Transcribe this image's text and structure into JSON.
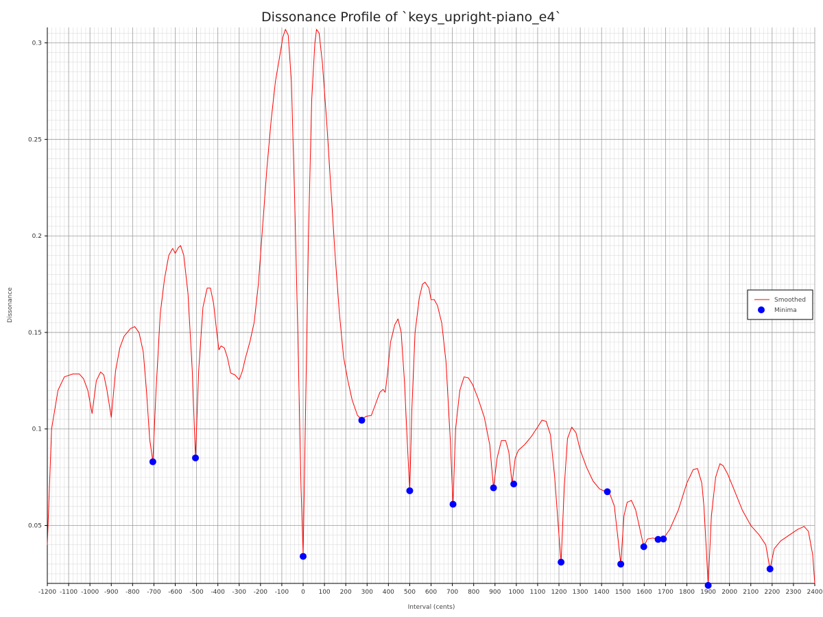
{
  "chart_data": {
    "type": "line",
    "title": "Dissonance Profile of `keys_upright-piano_e4`",
    "xlabel": "Interval (cents)",
    "ylabel": "Dissonance",
    "xlim": [
      -1200,
      2400
    ],
    "ylim": [
      0.02,
      0.308
    ],
    "x_ticks": [
      -1200,
      -1100,
      -1000,
      -900,
      -800,
      -700,
      -600,
      -500,
      -400,
      -300,
      -200,
      -100,
      0,
      100,
      200,
      300,
      400,
      500,
      600,
      700,
      800,
      900,
      1000,
      1100,
      1200,
      1300,
      1400,
      1500,
      1600,
      1700,
      1800,
      1900,
      2000,
      2100,
      2200,
      2300,
      2400
    ],
    "y_ticks": [
      0.05,
      0.1,
      0.15,
      0.2,
      0.25,
      0.3
    ],
    "grid": true,
    "legend_position": "right",
    "series": [
      {
        "name": "Smoothed",
        "kind": "line",
        "color": "#ff0000",
        "points": [
          [
            -1200,
            0.04
          ],
          [
            -1180,
            0.1
          ],
          [
            -1150,
            0.12
          ],
          [
            -1120,
            0.127
          ],
          [
            -1080,
            0.1285
          ],
          [
            -1050,
            0.1285
          ],
          [
            -1030,
            0.126
          ],
          [
            -1010,
            0.12
          ],
          [
            -990,
            0.108
          ],
          [
            -970,
            0.125
          ],
          [
            -950,
            0.1295
          ],
          [
            -935,
            0.128
          ],
          [
            -920,
            0.12
          ],
          [
            -900,
            0.106
          ],
          [
            -880,
            0.13
          ],
          [
            -860,
            0.142
          ],
          [
            -840,
            0.148
          ],
          [
            -810,
            0.152
          ],
          [
            -790,
            0.153
          ],
          [
            -770,
            0.15
          ],
          [
            -750,
            0.14
          ],
          [
            -735,
            0.12
          ],
          [
            -720,
            0.095
          ],
          [
            -705,
            0.083
          ],
          [
            -690,
            0.12
          ],
          [
            -670,
            0.16
          ],
          [
            -650,
            0.178
          ],
          [
            -630,
            0.19
          ],
          [
            -612,
            0.1935
          ],
          [
            -600,
            0.191
          ],
          [
            -585,
            0.194
          ],
          [
            -575,
            0.195
          ],
          [
            -560,
            0.19
          ],
          [
            -540,
            0.17
          ],
          [
            -520,
            0.13
          ],
          [
            -505,
            0.085
          ],
          [
            -490,
            0.13
          ],
          [
            -470,
            0.163
          ],
          [
            -450,
            0.173
          ],
          [
            -435,
            0.173
          ],
          [
            -420,
            0.165
          ],
          [
            -405,
            0.15
          ],
          [
            -395,
            0.141
          ],
          [
            -385,
            0.143
          ],
          [
            -370,
            0.142
          ],
          [
            -355,
            0.137
          ],
          [
            -340,
            0.129
          ],
          [
            -320,
            0.128
          ],
          [
            -300,
            0.1255
          ],
          [
            -285,
            0.13
          ],
          [
            -270,
            0.137
          ],
          [
            -250,
            0.145
          ],
          [
            -230,
            0.155
          ],
          [
            -210,
            0.175
          ],
          [
            -190,
            0.205
          ],
          [
            -170,
            0.235
          ],
          [
            -150,
            0.26
          ],
          [
            -130,
            0.28
          ],
          [
            -110,
            0.293
          ],
          [
            -95,
            0.303
          ],
          [
            -83,
            0.307
          ],
          [
            -70,
            0.304
          ],
          [
            -55,
            0.28
          ],
          [
            -40,
            0.22
          ],
          [
            -25,
            0.15
          ],
          [
            -10,
            0.07
          ],
          [
            0,
            0.035
          ],
          [
            10,
            0.1
          ],
          [
            25,
            0.2
          ],
          [
            40,
            0.27
          ],
          [
            55,
            0.3
          ],
          [
            63,
            0.307
          ],
          [
            75,
            0.305
          ],
          [
            90,
            0.29
          ],
          [
            110,
            0.26
          ],
          [
            130,
            0.225
          ],
          [
            150,
            0.19
          ],
          [
            170,
            0.16
          ],
          [
            190,
            0.137
          ],
          [
            210,
            0.125
          ],
          [
            230,
            0.115
          ],
          [
            255,
            0.107
          ],
          [
            275,
            0.105
          ],
          [
            295,
            0.1065
          ],
          [
            320,
            0.107
          ],
          [
            340,
            0.113
          ],
          [
            360,
            0.119
          ],
          [
            375,
            0.1205
          ],
          [
            385,
            0.119
          ],
          [
            395,
            0.128
          ],
          [
            410,
            0.145
          ],
          [
            430,
            0.154
          ],
          [
            445,
            0.157
          ],
          [
            460,
            0.15
          ],
          [
            475,
            0.125
          ],
          [
            490,
            0.09
          ],
          [
            500,
            0.068
          ],
          [
            510,
            0.11
          ],
          [
            525,
            0.15
          ],
          [
            545,
            0.168
          ],
          [
            560,
            0.175
          ],
          [
            572,
            0.176
          ],
          [
            590,
            0.173
          ],
          [
            600,
            0.167
          ],
          [
            615,
            0.167
          ],
          [
            630,
            0.164
          ],
          [
            650,
            0.155
          ],
          [
            670,
            0.135
          ],
          [
            690,
            0.095
          ],
          [
            703,
            0.061
          ],
          [
            715,
            0.1
          ],
          [
            735,
            0.12
          ],
          [
            755,
            0.127
          ],
          [
            775,
            0.1265
          ],
          [
            795,
            0.123
          ],
          [
            820,
            0.116
          ],
          [
            850,
            0.106
          ],
          [
            875,
            0.092
          ],
          [
            893,
            0.0695
          ],
          [
            910,
            0.085
          ],
          [
            930,
            0.094
          ],
          [
            950,
            0.094
          ],
          [
            965,
            0.088
          ],
          [
            980,
            0.0715
          ],
          [
            995,
            0.085
          ],
          [
            1010,
            0.089
          ],
          [
            1040,
            0.092
          ],
          [
            1070,
            0.096
          ],
          [
            1100,
            0.101
          ],
          [
            1120,
            0.1045
          ],
          [
            1140,
            0.104
          ],
          [
            1160,
            0.097
          ],
          [
            1180,
            0.075
          ],
          [
            1200,
            0.045
          ],
          [
            1210,
            0.031
          ],
          [
            1225,
            0.07
          ],
          [
            1240,
            0.095
          ],
          [
            1260,
            0.101
          ],
          [
            1280,
            0.098
          ],
          [
            1300,
            0.089
          ],
          [
            1330,
            0.08
          ],
          [
            1360,
            0.073
          ],
          [
            1390,
            0.069
          ],
          [
            1420,
            0.0675
          ],
          [
            1440,
            0.066
          ],
          [
            1460,
            0.06
          ],
          [
            1480,
            0.04
          ],
          [
            1490,
            0.03
          ],
          [
            1505,
            0.055
          ],
          [
            1520,
            0.062
          ],
          [
            1540,
            0.063
          ],
          [
            1560,
            0.058
          ],
          [
            1580,
            0.048
          ],
          [
            1598,
            0.039
          ],
          [
            1615,
            0.043
          ],
          [
            1640,
            0.0435
          ],
          [
            1665,
            0.043
          ],
          [
            1690,
            0.0432
          ],
          [
            1720,
            0.048
          ],
          [
            1760,
            0.058
          ],
          [
            1800,
            0.072
          ],
          [
            1830,
            0.079
          ],
          [
            1850,
            0.0795
          ],
          [
            1870,
            0.072
          ],
          [
            1880,
            0.06
          ],
          [
            1890,
            0.04
          ],
          [
            1900,
            0.019
          ],
          [
            1915,
            0.055
          ],
          [
            1935,
            0.075
          ],
          [
            1955,
            0.082
          ],
          [
            1970,
            0.081
          ],
          [
            1990,
            0.077
          ],
          [
            2020,
            0.069
          ],
          [
            2060,
            0.058
          ],
          [
            2100,
            0.05
          ],
          [
            2140,
            0.045
          ],
          [
            2170,
            0.04
          ],
          [
            2190,
            0.0275
          ],
          [
            2210,
            0.038
          ],
          [
            2240,
            0.042
          ],
          [
            2280,
            0.045
          ],
          [
            2320,
            0.048
          ],
          [
            2350,
            0.0495
          ],
          [
            2370,
            0.047
          ],
          [
            2390,
            0.035
          ],
          [
            2400,
            0.02
          ]
        ]
      },
      {
        "name": "Minima",
        "kind": "scatter",
        "color": "#0000ff",
        "points": [
          [
            -705,
            0.083
          ],
          [
            -505,
            0.085
          ],
          [
            0,
            0.034
          ],
          [
            275,
            0.1045
          ],
          [
            500,
            0.068
          ],
          [
            703,
            0.061
          ],
          [
            893,
            0.0695
          ],
          [
            988,
            0.0715
          ],
          [
            1210,
            0.031
          ],
          [
            1427,
            0.0675
          ],
          [
            1490,
            0.03
          ],
          [
            1598,
            0.039
          ],
          [
            1665,
            0.0428
          ],
          [
            1690,
            0.043
          ],
          [
            1900,
            0.019
          ],
          [
            2190,
            0.0275
          ]
        ]
      }
    ]
  }
}
